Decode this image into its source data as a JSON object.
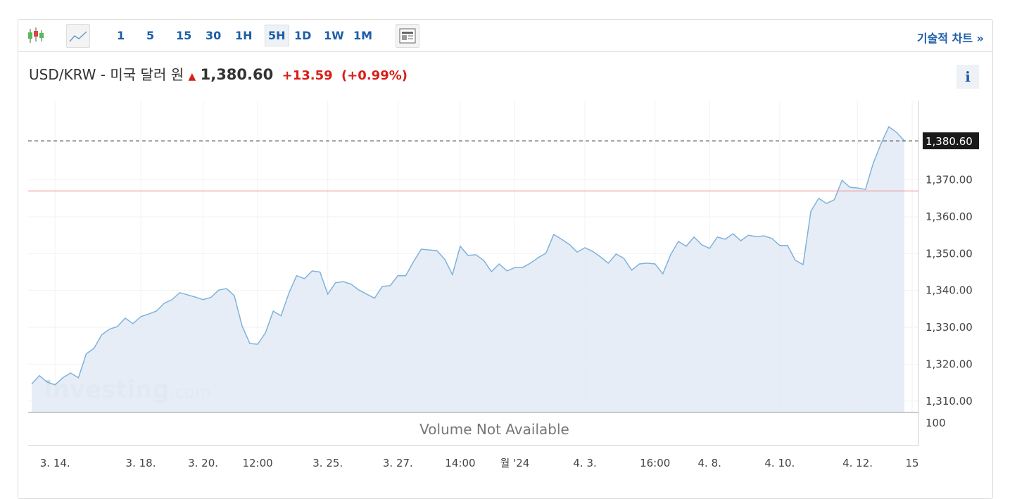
{
  "toolbar": {
    "intervals": [
      "1",
      "5",
      "15",
      "30",
      "1H",
      "5H",
      "1D",
      "1W",
      "1M"
    ],
    "active": "5H",
    "link": "기술적 차트 »"
  },
  "header": {
    "title": "USD/KRW - 미국 달러 원",
    "price": "1,380.60",
    "change": "+13.59",
    "percent": "(+0.99%)",
    "info": "i"
  },
  "watermark": {
    "brand": "Investing",
    "suffix": ".com"
  },
  "chart_data": {
    "type": "area",
    "color": "#7fb2db",
    "fill": "#e3ebf5",
    "values": [
      1314.6,
      1316.9,
      1315.1,
      1314.4,
      1316.3,
      1317.6,
      1316.3,
      1322.8,
      1324.3,
      1328.0,
      1329.5,
      1330.2,
      1332.5,
      1331.0,
      1332.9,
      1333.6,
      1334.4,
      1336.5,
      1337.5,
      1339.4,
      1338.8,
      1338.2,
      1337.5,
      1338.1,
      1340.1,
      1340.5,
      1338.6,
      1330.4,
      1325.6,
      1325.4,
      1328.5,
      1334.4,
      1333.1,
      1339.2,
      1344.0,
      1343.2,
      1345.3,
      1345.0,
      1339.0,
      1342.1,
      1342.4,
      1341.7,
      1340.1,
      1339.0,
      1337.9,
      1341.1,
      1341.3,
      1344.0,
      1344.0,
      1347.8,
      1351.2,
      1351.0,
      1350.8,
      1348.5,
      1344.3,
      1352.0,
      1349.5,
      1349.7,
      1348.2,
      1345.1,
      1347.2,
      1345.3,
      1346.2,
      1346.2,
      1347.4,
      1348.9,
      1350.1,
      1355.2,
      1353.9,
      1352.5,
      1350.4,
      1351.6,
      1350.6,
      1349.1,
      1347.4,
      1349.9,
      1348.7,
      1345.5,
      1347.2,
      1347.4,
      1347.2,
      1344.5,
      1349.7,
      1353.3,
      1352.0,
      1354.5,
      1352.4,
      1351.4,
      1354.5,
      1353.9,
      1355.4,
      1353.5,
      1355.0,
      1354.6,
      1354.8,
      1354.1,
      1352.2,
      1352.2,
      1348.2,
      1347.0,
      1361.5,
      1365.0,
      1363.6,
      1364.6,
      1369.9,
      1368.0,
      1367.8,
      1367.4,
      1374.5,
      1379.8,
      1384.4,
      1382.9,
      1380.6
    ],
    "xlim": [
      0,
      112
    ],
    "xticks": [
      {
        "value": 3,
        "label": "3. 14."
      },
      {
        "value": 14,
        "label": "3. 18."
      },
      {
        "value": 22,
        "label": "3. 20."
      },
      {
        "value": 29,
        "label": "12:00"
      },
      {
        "value": 38,
        "label": "3. 25."
      },
      {
        "value": 47,
        "label": "3. 27."
      },
      {
        "value": 55,
        "label": "14:00"
      },
      {
        "value": 62,
        "label": "월 '24"
      },
      {
        "value": 71,
        "label": "4. 3."
      },
      {
        "value": 80,
        "label": "16:00"
      },
      {
        "value": 87,
        "label": "4. 8."
      },
      {
        "value": 96,
        "label": "4. 10."
      },
      {
        "value": 106,
        "label": "4. 12."
      },
      {
        "value": 113,
        "label": "15"
      }
    ],
    "ylim": [
      1306.9,
      1391.5
    ],
    "yticks": [
      {
        "value": 1310,
        "label": "1,310.00"
      },
      {
        "value": 1320,
        "label": "1,320.00"
      },
      {
        "value": 1330,
        "label": "1,330.00"
      },
      {
        "value": 1340,
        "label": "1,340.00"
      },
      {
        "value": 1350,
        "label": "1,350.00"
      },
      {
        "value": 1360,
        "label": "1,360.00"
      },
      {
        "value": 1370,
        "label": "1,370.00"
      }
    ],
    "grid": true,
    "last_price": {
      "value": 1380.6,
      "label": "1,380.60"
    },
    "prev_close": 1367.01,
    "prev_close_color": "#f08a8a",
    "volume_text": "Volume Not Available",
    "volume_yticks": [
      100
    ]
  }
}
